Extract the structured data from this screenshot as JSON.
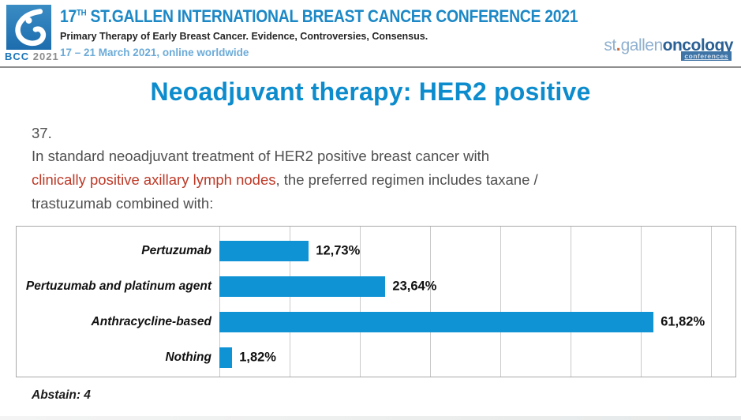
{
  "header": {
    "logo_bcc": "BCC",
    "logo_year": "2021",
    "title_num": "17",
    "title_sup": "TH",
    "title_rest": " ST.GALLEN INTERNATIONAL BREAST CANCER CONFERENCE 2021",
    "subtitle": "Primary Therapy of Early Breast Cancer. Evidence, Controversies, Consensus.",
    "date": "17 – 21 March 2021, online worldwide",
    "brand_st": "st",
    "brand_dot": ".",
    "brand_gallen": "gallen",
    "brand_oncology": "oncology",
    "brand_conferences": "conferences"
  },
  "slide": {
    "title": "Neoadjuvant therapy: HER2 positive",
    "question_number": "37.",
    "q_line1": "In standard neoadjuvant treatment of HER2 positive breast cancer with",
    "q_highlight": "clinically positive axillary lymph nodes",
    "q_after": ", the preferred regimen includes taxane /",
    "q_line3": "trastuzumab combined with:",
    "abstain": "Abstain: 4"
  },
  "chart_data": {
    "type": "bar",
    "orientation": "horizontal",
    "title": "",
    "categories": [
      "Pertuzumab",
      "Pertuzumab and platinum agent",
      "Anthracycline-based",
      "Nothing"
    ],
    "values": [
      12.73,
      23.64,
      61.82,
      1.82
    ],
    "value_labels": [
      "12,73%",
      "23,64%",
      "61,82%",
      "1,82%"
    ],
    "xlim": [
      0,
      70
    ],
    "gridline_interval": 10,
    "grid": true,
    "legend": false,
    "bar_color": "#1093d5"
  },
  "colors": {
    "header_blue": "#1c88c6",
    "date_blue": "#6cabd8",
    "slide_title_blue": "#0d8ccd",
    "highlight_red": "#bd3927",
    "bar_blue": "#1093d5"
  }
}
